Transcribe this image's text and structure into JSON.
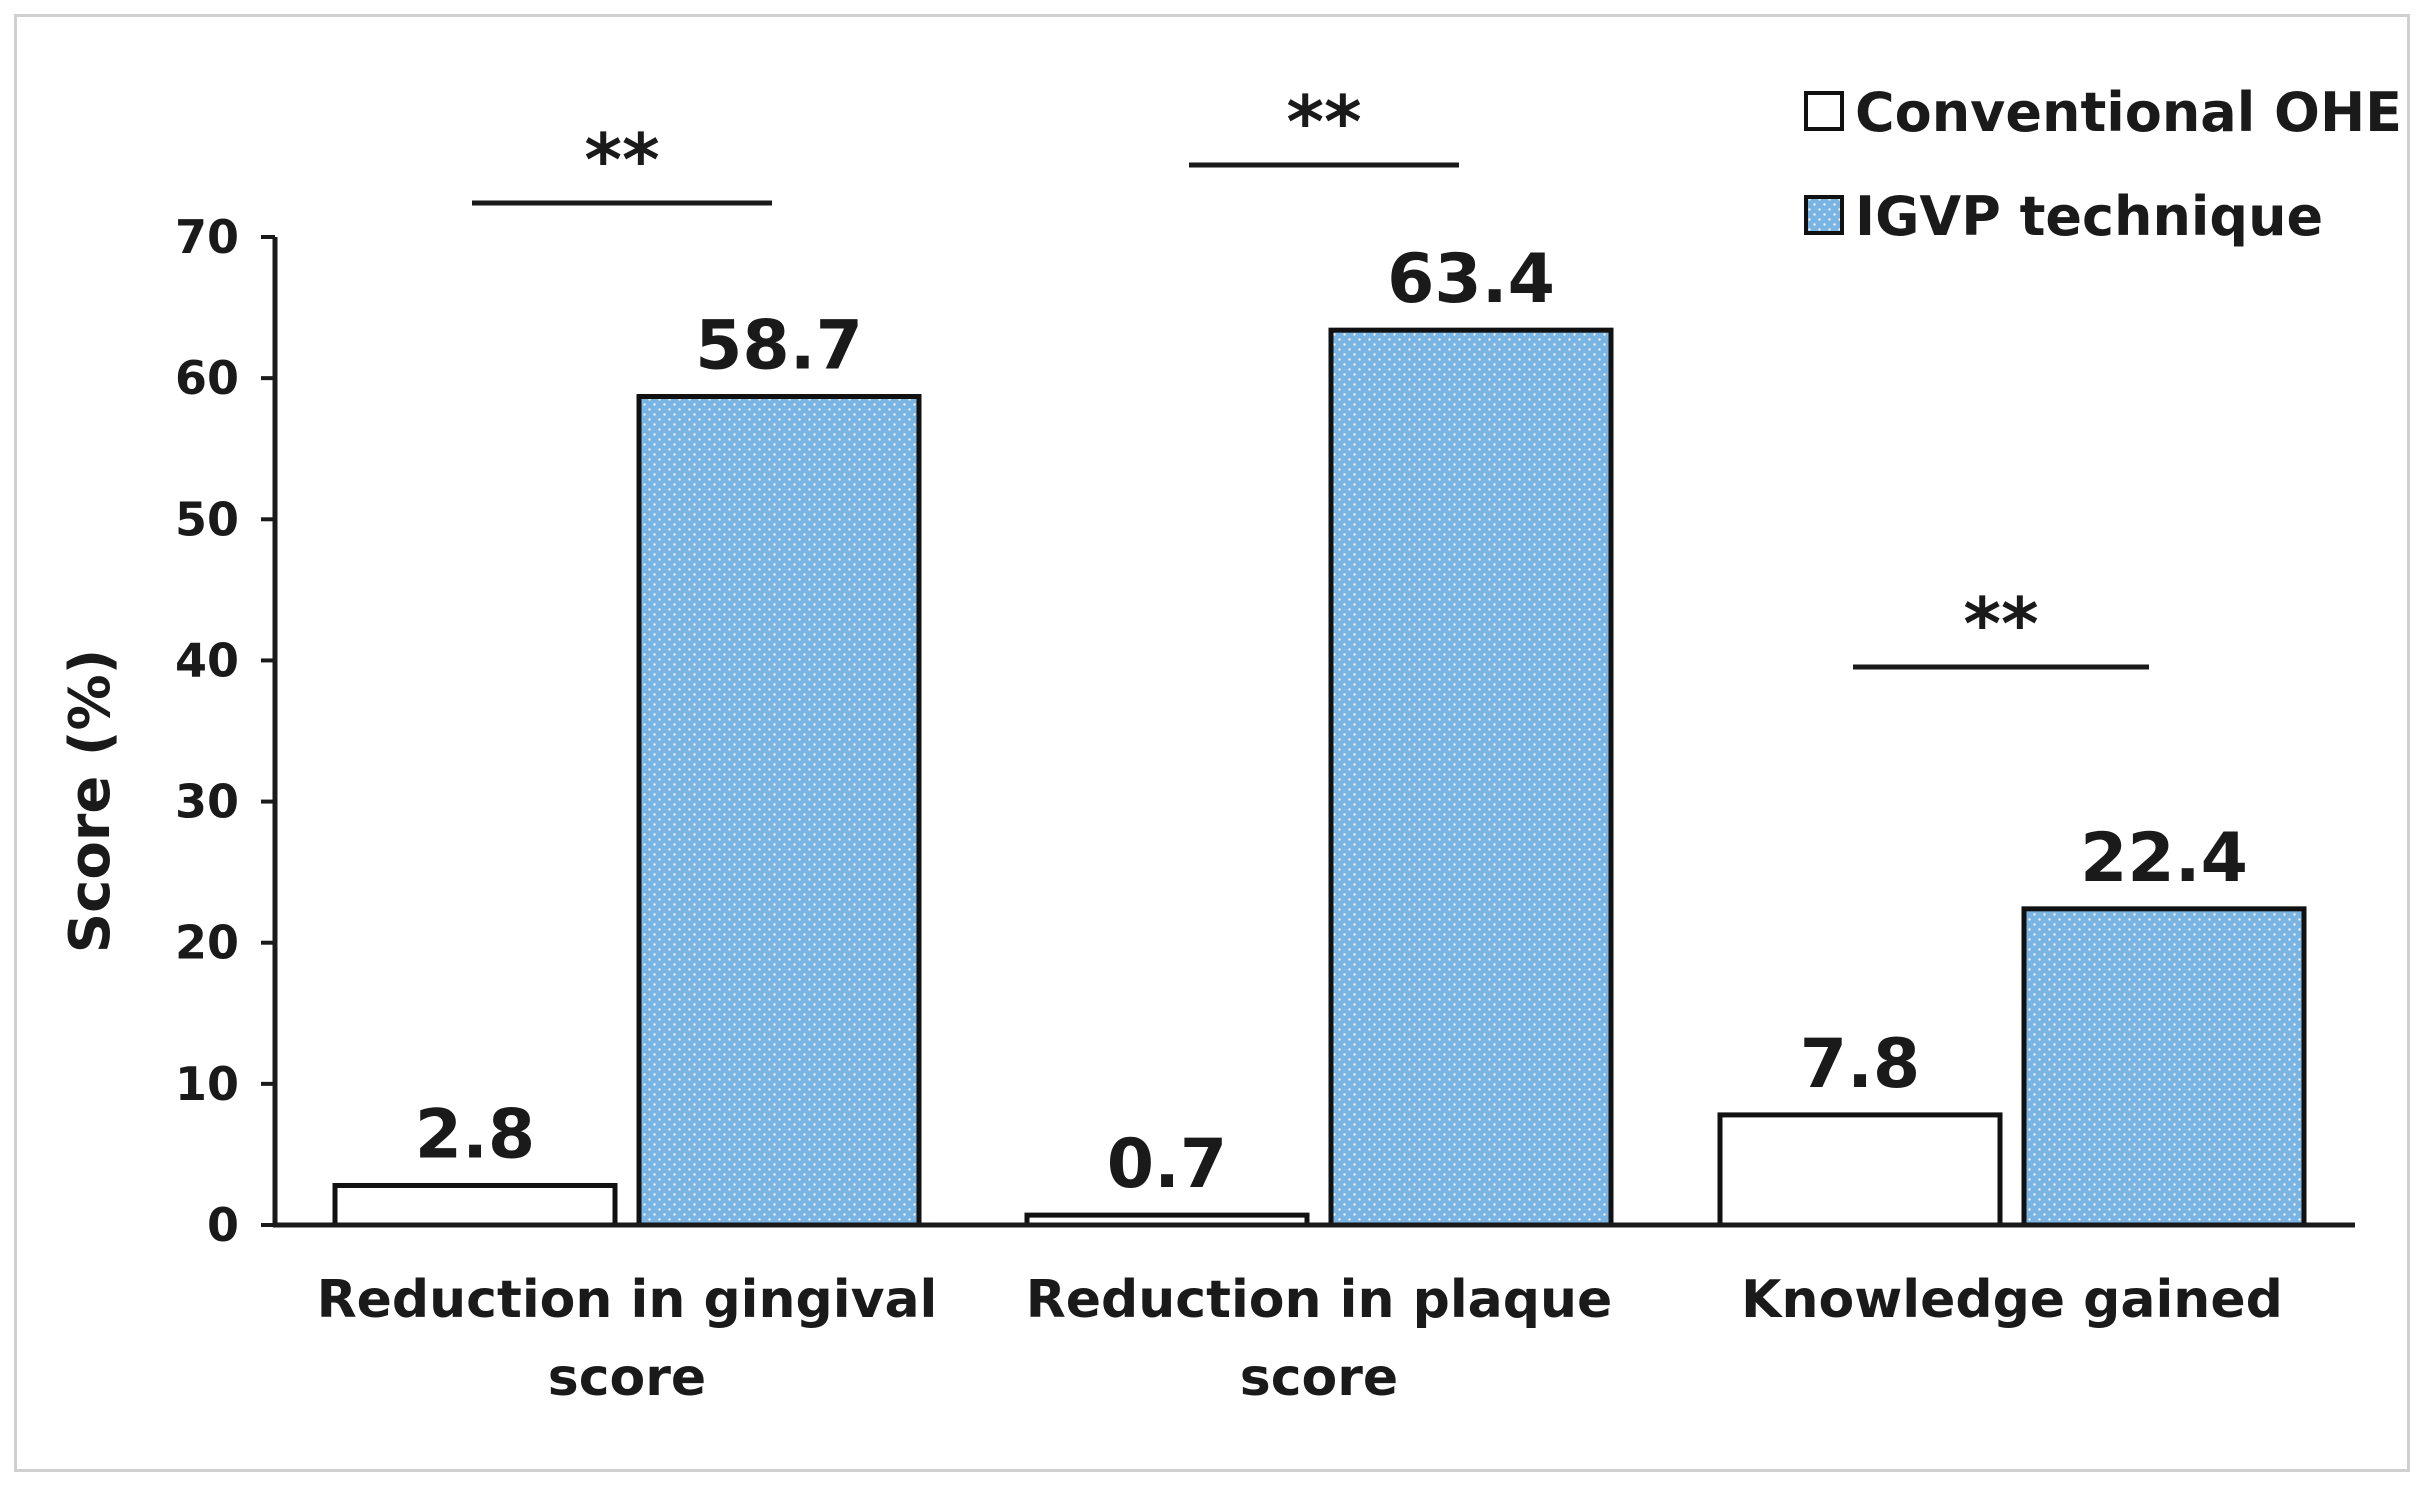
{
  "chart_data": {
    "type": "bar",
    "title": "",
    "xlabel": "",
    "ylabel": "Score (%)",
    "ylim": [
      0,
      70
    ],
    "yticks": [
      0,
      10,
      20,
      30,
      40,
      50,
      60,
      70
    ],
    "categories": [
      [
        "Reduction in gingival",
        "score"
      ],
      [
        "Reduction in plaque",
        "score"
      ],
      [
        "Knowledge gained"
      ]
    ],
    "series": [
      {
        "name": "Conventional OHE",
        "values": [
          2.8,
          0.7,
          7.8
        ],
        "value_labels": [
          "2.8",
          "0.7",
          "7.8"
        ],
        "fill": "#ffffff",
        "pattern": "none"
      },
      {
        "name": "IGVP technique",
        "values": [
          58.7,
          63.4,
          22.4
        ],
        "value_labels": [
          "58.7",
          "63.4",
          "22.4"
        ],
        "fill": "#7ab4e2",
        "pattern": "dots"
      }
    ],
    "significance": [
      {
        "category_index": 0,
        "label": "**"
      },
      {
        "category_index": 1,
        "label": "**"
      },
      {
        "category_index": 2,
        "label": "**"
      }
    ],
    "legend_position": "top-right",
    "grid": false
  },
  "colors": {
    "axis": "#1a1a1a",
    "bar_outline": "#111111",
    "igvp_fill": "#7ab4e2",
    "conventional_fill": "#ffffff"
  }
}
